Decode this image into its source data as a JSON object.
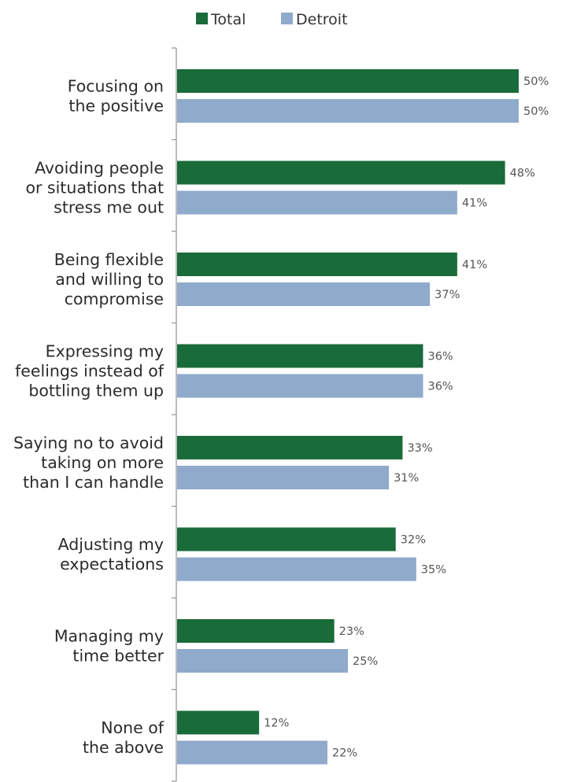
{
  "chart_data": {
    "type": "bar",
    "orientation": "horizontal",
    "categories": [
      [
        "Focusing on",
        "the positive"
      ],
      [
        "Avoiding people",
        "or situations that",
        "stress me out"
      ],
      [
        "Being flexible",
        "and willing to",
        "compromise"
      ],
      [
        "Expressing my",
        "feelings instead of",
        "bottling them up"
      ],
      [
        "Saying no to avoid",
        "taking on more",
        "than I can handle"
      ],
      [
        "Adjusting my",
        "expectations"
      ],
      [
        "Managing my",
        "time better"
      ],
      [
        "None of",
        "the above"
      ]
    ],
    "series": [
      {
        "name": "Total",
        "color": "#1a6b3a",
        "values": [
          50,
          48,
          41,
          36,
          33,
          32,
          23,
          12
        ],
        "labels": [
          "50%",
          "48%",
          "41%",
          "36%",
          "33%",
          "32%",
          "23%",
          "12%"
        ]
      },
      {
        "name": "Detroit",
        "color": "#8faacb",
        "values": [
          50,
          41,
          37,
          36,
          31,
          35,
          25,
          22
        ],
        "labels": [
          "50%",
          "41%",
          "37%",
          "36%",
          "31%",
          "35%",
          "25%",
          "22%"
        ]
      }
    ],
    "value_unit": "%",
    "xlim": [
      0,
      50
    ],
    "legend_position": "top",
    "grid": false,
    "title": "",
    "xlabel": "",
    "ylabel": ""
  }
}
